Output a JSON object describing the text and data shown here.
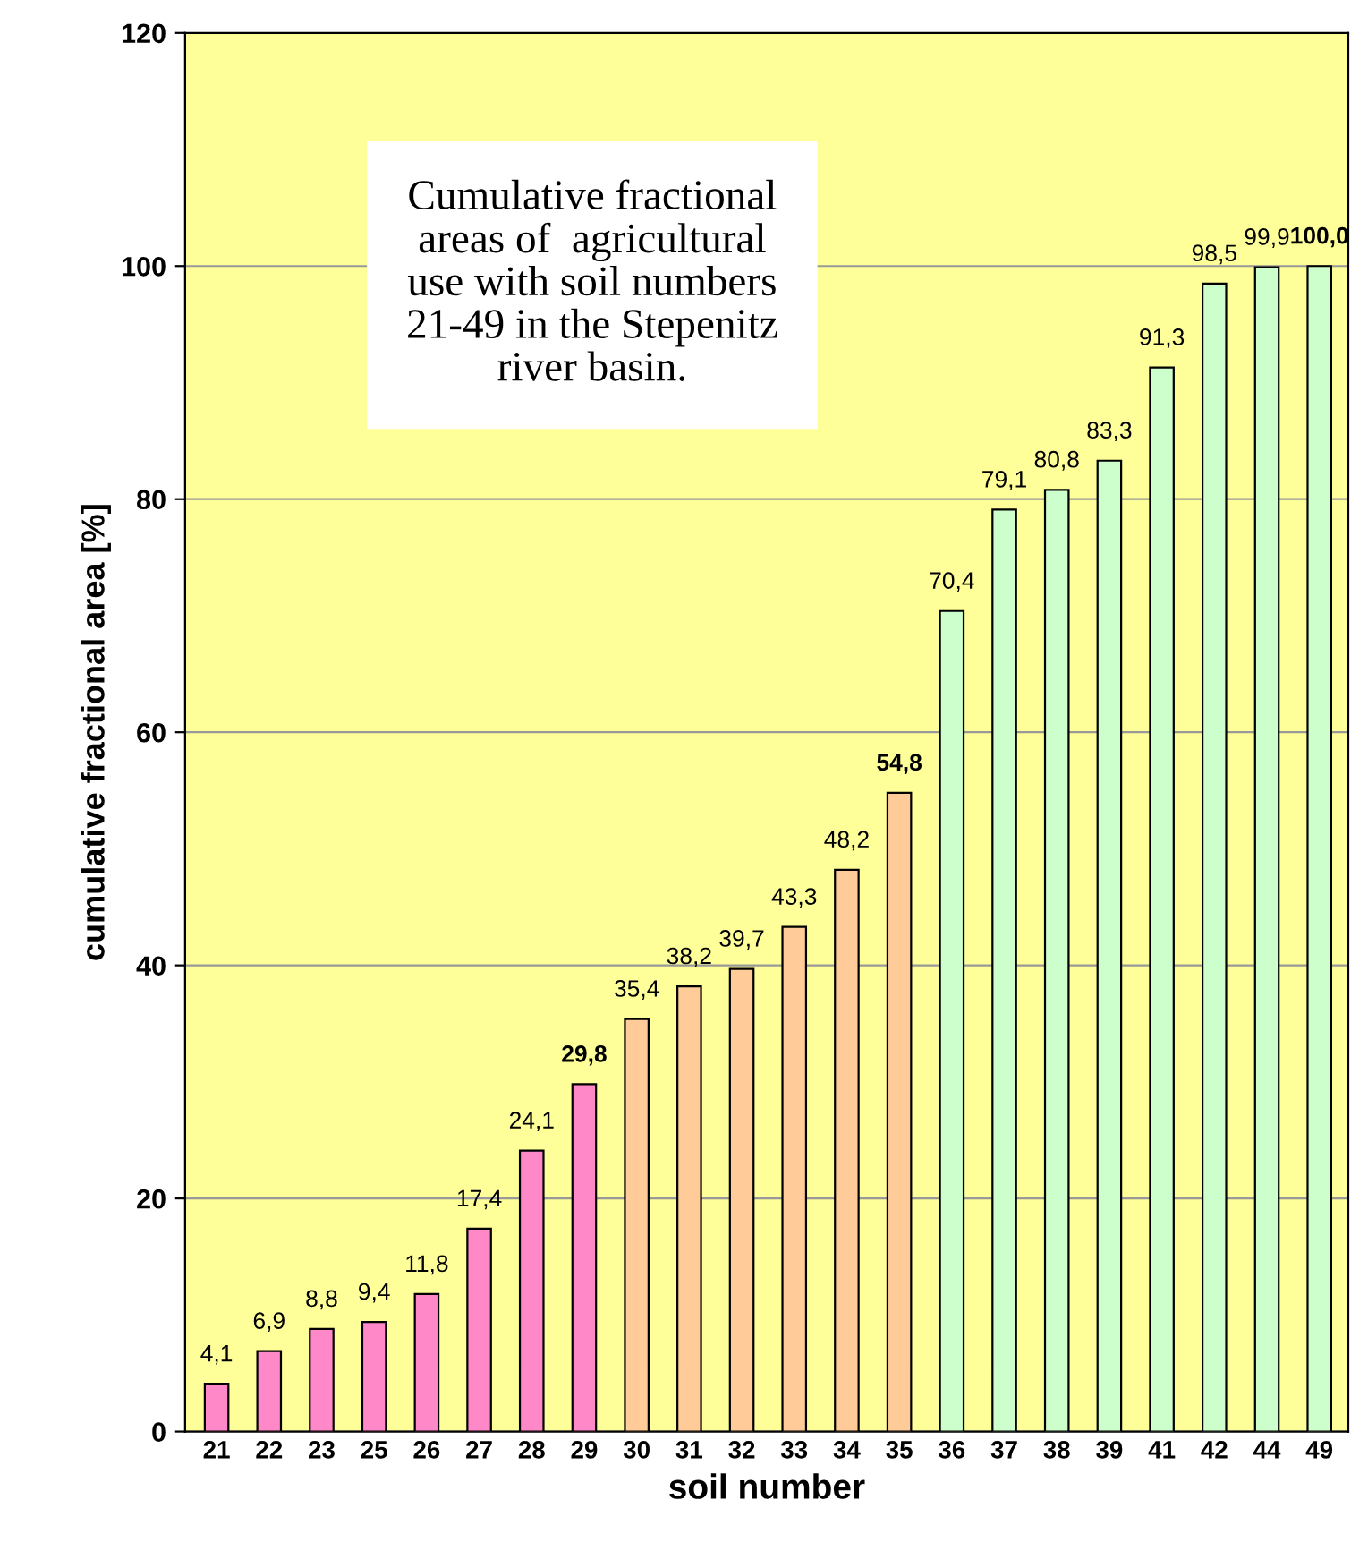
{
  "chart_data": {
    "type": "bar",
    "title": "Cumulative fractional\nareas of  agricultural\nuse with soil numbers\n21-49 in the Stepenitz\nriver basin.",
    "xlabel": "soil number",
    "ylabel": "cumulative fractional area [%]",
    "categories": [
      "21",
      "22",
      "23",
      "25",
      "26",
      "27",
      "28",
      "29",
      "30",
      "31",
      "32",
      "33",
      "34",
      "35",
      "36",
      "37",
      "38",
      "39",
      "41",
      "42",
      "44",
      "49"
    ],
    "values": [
      4.1,
      6.9,
      8.8,
      9.4,
      11.8,
      17.4,
      24.1,
      29.8,
      35.4,
      38.2,
      39.7,
      43.3,
      48.2,
      54.8,
      70.4,
      79.1,
      80.8,
      83.3,
      91.3,
      98.5,
      99.9,
      100.0
    ],
    "value_labels": [
      "4,1",
      "6,9",
      "8,8",
      "9,4",
      "11,8",
      "17,4",
      "24,1",
      "29,8",
      "35,4",
      "38,2",
      "39,7",
      "43,3",
      "48,2",
      "54,8",
      "70,4",
      "79,1",
      "80,8",
      "83,3",
      "91,3",
      "98,5",
      "99,9",
      "100,0"
    ],
    "colors": [
      "#ff88c8",
      "#ff88c8",
      "#ff88c8",
      "#ff88c8",
      "#ff88c8",
      "#ff88c8",
      "#ff88c8",
      "#ff88c8",
      "#ffcc99",
      "#ffcc99",
      "#ffcc99",
      "#ffcc99",
      "#ffcc99",
      "#ffcc99",
      "#ccffcc",
      "#ccffcc",
      "#ccffcc",
      "#ccffcc",
      "#ccffcc",
      "#ccffcc",
      "#ccffcc",
      "#ccffcc"
    ],
    "ylim": [
      0,
      120
    ],
    "yticks": [
      0,
      20,
      40,
      60,
      80,
      100,
      120
    ],
    "grid": "y",
    "legend": false
  }
}
